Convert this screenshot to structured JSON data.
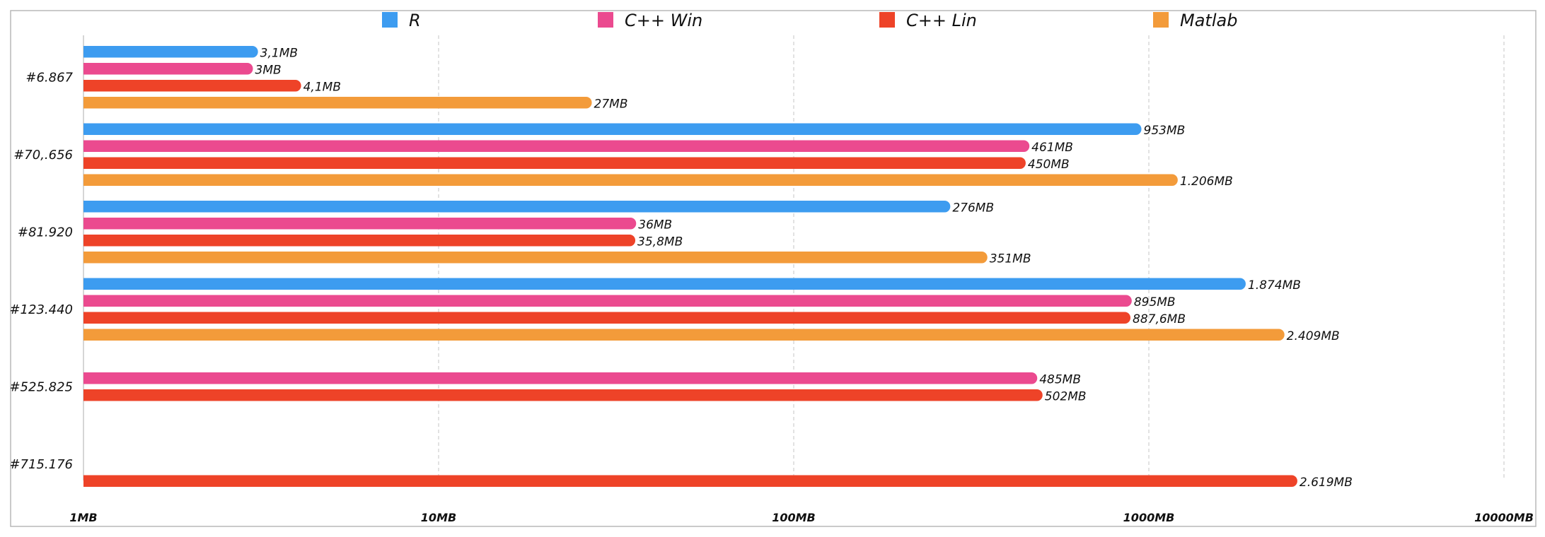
{
  "chart_data": {
    "type": "bar",
    "orientation": "horizontal",
    "x_scale": "log",
    "xlim": [
      1,
      10000
    ],
    "x_ticks": [
      {
        "value": 1,
        "label": "1MB"
      },
      {
        "value": 10,
        "label": "10MB"
      },
      {
        "value": 100,
        "label": "100MB"
      },
      {
        "value": 1000,
        "label": "1000MB"
      },
      {
        "value": 10000,
        "label": "10000MB"
      }
    ],
    "categories": [
      "#6.867",
      "#70,.656",
      "#81.920",
      "#123.440",
      "#525.825",
      "#715.176"
    ],
    "legend_position": "top",
    "grid": true,
    "series": [
      {
        "name": "R",
        "color": "#3d9cf0",
        "values": [
          3.1,
          953,
          276,
          1874,
          null,
          null
        ],
        "labels": [
          "3,1MB",
          "953MB",
          "276MB",
          "1.874MB",
          "",
          ""
        ]
      },
      {
        "name": "C++ Win",
        "color": "#eb4a8f",
        "values": [
          3,
          461,
          36,
          895,
          485,
          null
        ],
        "labels": [
          "3MB",
          "461MB",
          "36MB",
          "895MB",
          "485MB",
          ""
        ]
      },
      {
        "name": "C++ Lin",
        "color": "#ee4328",
        "values": [
          4.1,
          450,
          35.8,
          887.6,
          502,
          2619
        ],
        "labels": [
          "4,1MB",
          "450MB",
          "35,8MB",
          "887,6MB",
          "502MB",
          "2.619MB"
        ]
      },
      {
        "name": "Matlab",
        "color": "#f39b3a",
        "values": [
          27,
          1206,
          351,
          2409,
          null,
          null
        ],
        "labels": [
          "27MB",
          "1.206MB",
          "351MB",
          "2.409MB",
          "",
          ""
        ]
      }
    ]
  }
}
